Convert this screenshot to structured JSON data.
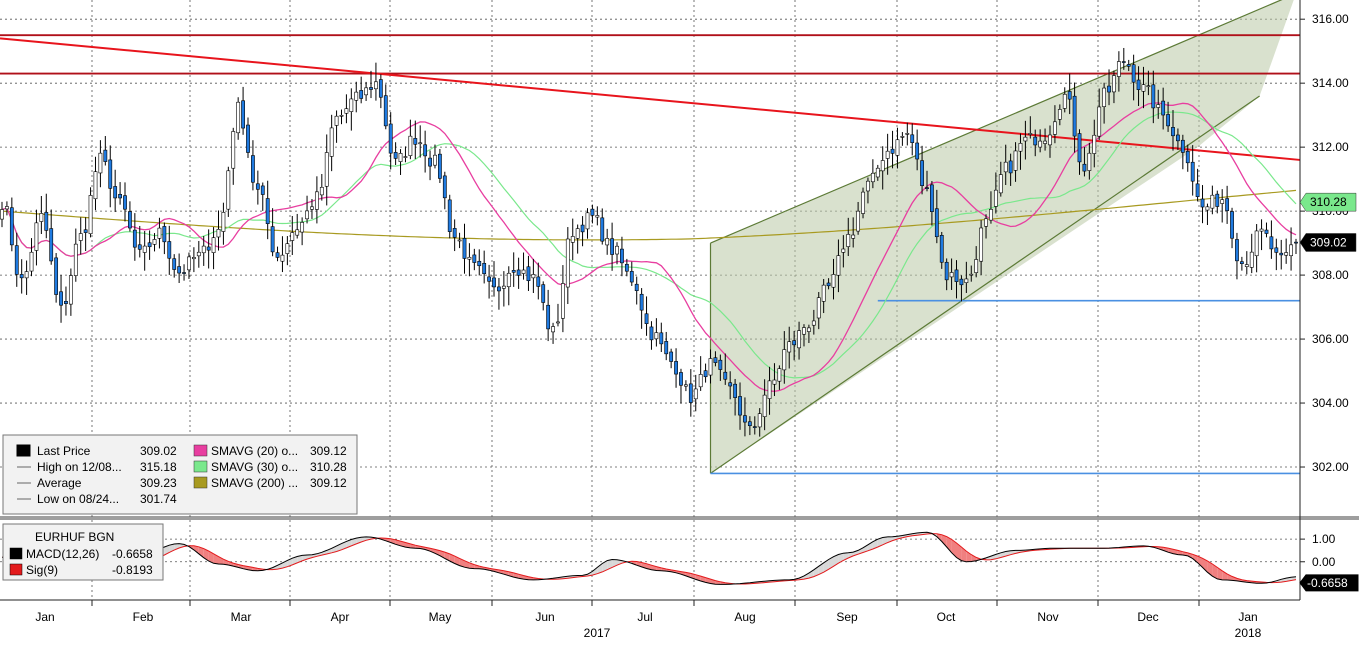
{
  "chart_data": {
    "type": "candlestick",
    "instrument": "EURHUF BGN",
    "price_axis": {
      "ticks": [
        302,
        304,
        306,
        308,
        310,
        312,
        314,
        316
      ],
      "tick_labels": [
        "302.00",
        "304.00",
        "306.00",
        "308.00",
        "310.00",
        "312.00",
        "314.00",
        "316.00"
      ],
      "range": [
        300.5,
        316.6
      ]
    },
    "macd_axis": {
      "ticks": [
        1,
        0
      ],
      "tick_labels": [
        "1.00",
        "0.00"
      ],
      "range": [
        -1.6,
        1.8
      ]
    },
    "months": [
      "Jan",
      "Feb",
      "Mar",
      "Apr",
      "May",
      "Jun",
      "Jul",
      "Aug",
      "Sep",
      "Oct",
      "Nov",
      "Dec",
      "Jan"
    ],
    "year_labels": [
      {
        "month_index": 5,
        "label": "2017"
      },
      {
        "month_index": 12,
        "label": "2018"
      }
    ],
    "price_tags": [
      {
        "label": "310.28",
        "value": 310.28,
        "color": "#7ae88c",
        "text_color": "#000000"
      },
      {
        "label": "309.02",
        "value": 309.02,
        "color": "#000000",
        "text_color": "#ffffff"
      }
    ],
    "macd_tag": {
      "label": "-0.6658",
      "value": -0.6658
    },
    "legend": {
      "rows": [
        {
          "label": "Last Price",
          "value": "309.02",
          "color": "#000000",
          "kind": "box"
        },
        {
          "label": "High on 12/08...",
          "value": "315.18",
          "kind": "high"
        },
        {
          "label": "Average",
          "value": "309.23",
          "kind": "avg"
        },
        {
          "label": "Low on 08/24...",
          "value": "301.74",
          "kind": "low"
        }
      ],
      "ma_rows": [
        {
          "label": "SMAVG (20) o...",
          "value": "309.12",
          "color": "#e83ea0"
        },
        {
          "label": "SMAVG (30) o...",
          "value": "310.28",
          "color": "#7ae88c"
        },
        {
          "label": "SMAVG (200) ...",
          "value": "309.12",
          "color": "#a89a20"
        }
      ]
    },
    "macd_legend": {
      "title": "EURHUF BGN",
      "rows": [
        {
          "label": "MACD(12,26)",
          "value": "-0.6658",
          "color": "#000000"
        },
        {
          "label": "Sig(9)",
          "value": "-0.8193",
          "color": "#e31a1c"
        }
      ]
    },
    "price_anchors": [
      [
        0,
        310.3
      ],
      [
        4,
        307.8
      ],
      [
        8,
        309.8
      ],
      [
        12,
        306.9
      ],
      [
        16,
        309.2
      ],
      [
        20,
        311.6
      ],
      [
        24,
        310.2
      ],
      [
        28,
        308.6
      ],
      [
        32,
        309.3
      ],
      [
        36,
        308.1
      ],
      [
        40,
        308.6
      ],
      [
        44,
        309.4
      ],
      [
        48,
        313.2
      ],
      [
        52,
        310.6
      ],
      [
        56,
        308.6
      ],
      [
        60,
        309.5
      ],
      [
        64,
        310.4
      ],
      [
        68,
        312.9
      ],
      [
        72,
        313.5
      ],
      [
        76,
        314.0
      ],
      [
        80,
        311.5
      ],
      [
        84,
        312.3
      ],
      [
        88,
        311.5
      ],
      [
        92,
        309.2
      ],
      [
        96,
        308.2
      ],
      [
        100,
        307.5
      ],
      [
        104,
        308.3
      ],
      [
        108,
        307.9
      ],
      [
        112,
        306.2
      ],
      [
        116,
        309.4
      ],
      [
        120,
        309.8
      ],
      [
        124,
        308.8
      ],
      [
        128,
        307.9
      ],
      [
        132,
        306.2
      ],
      [
        136,
        305.3
      ],
      [
        140,
        304.2
      ],
      [
        144,
        305.2
      ],
      [
        148,
        304.4
      ],
      [
        152,
        303.1
      ],
      [
        156,
        304.5
      ],
      [
        160,
        305.8
      ],
      [
        164,
        306.5
      ],
      [
        168,
        307.6
      ],
      [
        172,
        309.2
      ],
      [
        176,
        310.8
      ],
      [
        180,
        311.9
      ],
      [
        184,
        312.4
      ],
      [
        188,
        310.6
      ],
      [
        192,
        308.0
      ],
      [
        196,
        307.8
      ],
      [
        200,
        309.6
      ],
      [
        204,
        311.3
      ],
      [
        208,
        312.2
      ],
      [
        212,
        312.4
      ],
      [
        216,
        313.6
      ],
      [
        220,
        311.4
      ],
      [
        224,
        313.6
      ],
      [
        228,
        314.7
      ],
      [
        232,
        313.8
      ],
      [
        236,
        313.0
      ],
      [
        240,
        312.0
      ],
      [
        244,
        310.1
      ],
      [
        248,
        310.4
      ],
      [
        252,
        308.4
      ],
      [
        256,
        309.3
      ],
      [
        260,
        308.4
      ],
      [
        263,
        309.02
      ]
    ],
    "macd_anchors": [
      [
        0,
        0.2
      ],
      [
        12,
        -0.5
      ],
      [
        24,
        -0.2
      ],
      [
        36,
        0.8
      ],
      [
        44,
        -0.1
      ],
      [
        52,
        -0.4
      ],
      [
        62,
        0.3
      ],
      [
        74,
        1.1
      ],
      [
        84,
        0.6
      ],
      [
        96,
        -0.3
      ],
      [
        108,
        -0.8
      ],
      [
        118,
        -0.6
      ],
      [
        124,
        0.1
      ],
      [
        134,
        -0.4
      ],
      [
        146,
        -1.0
      ],
      [
        160,
        -0.8
      ],
      [
        172,
        0.4
      ],
      [
        180,
        1.1
      ],
      [
        188,
        1.3
      ],
      [
        196,
        0.0
      ],
      [
        206,
        0.5
      ],
      [
        214,
        0.6
      ],
      [
        224,
        0.6
      ],
      [
        232,
        0.7
      ],
      [
        240,
        0.3
      ],
      [
        248,
        -0.8
      ],
      [
        256,
        -0.95
      ],
      [
        263,
        -0.6658
      ]
    ],
    "channel": {
      "lower_start": [
        144,
        301.8
      ],
      "lower_end": [
        243,
        312.0
      ],
      "upper_start": [
        144,
        309.0
      ],
      "upper_end": [
        263,
        316.8
      ]
    },
    "downtrend": {
      "start": [
        0,
        315.4
      ],
      "end": [
        263,
        311.6
      ]
    },
    "resistance_lines": [
      315.5,
      314.3
    ],
    "support_lines": [
      {
        "from": 144,
        "value": 301.8
      },
      {
        "from": 178,
        "value": 307.2
      }
    ]
  }
}
